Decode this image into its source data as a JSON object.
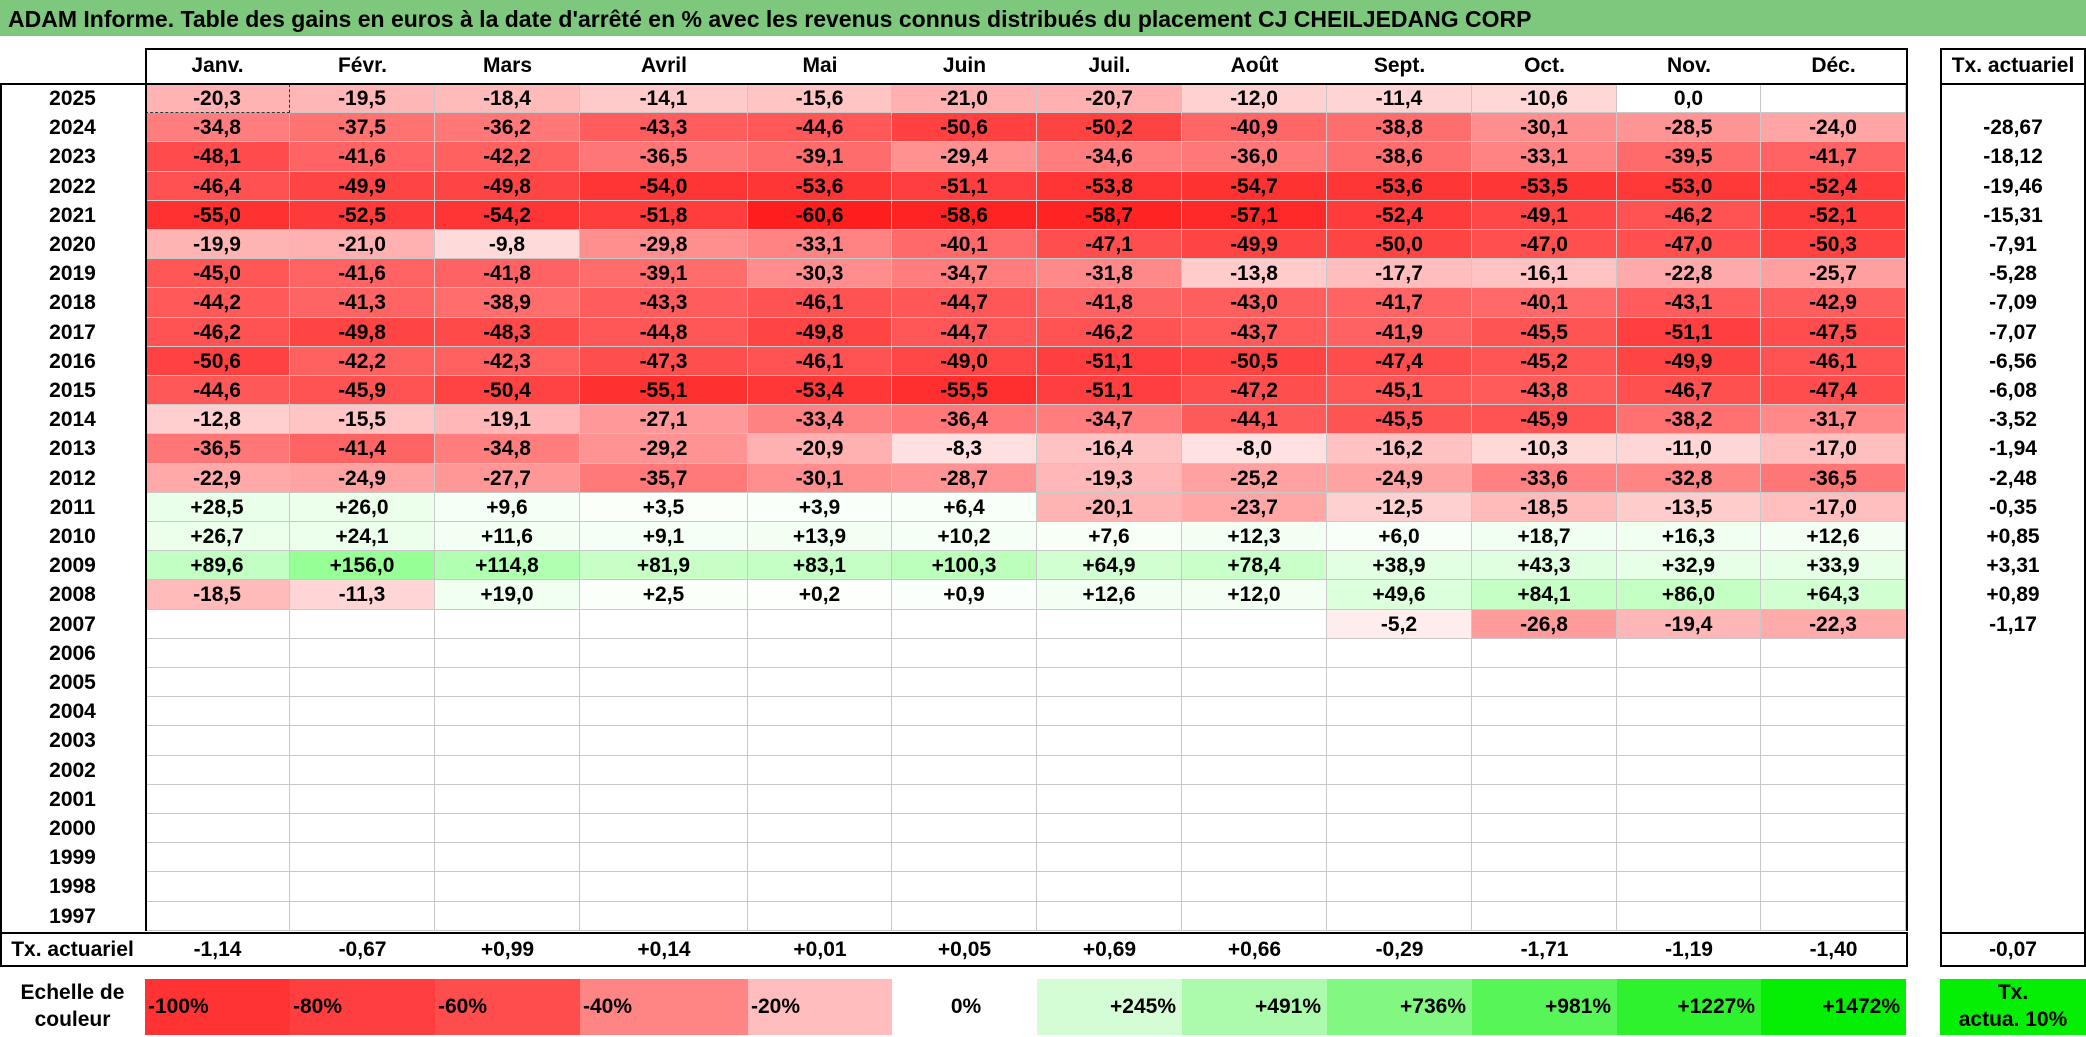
{
  "title": "ADAM Informe. Table des gains en euros à la date d'arrêté en % avec les revenus connus distribués du placement CJ CHEILJEDANG CORP",
  "months": [
    "Janv.",
    "Févr.",
    "Mars",
    "Avril",
    "Mai",
    "Juin",
    "Juil.",
    "Août",
    "Sept.",
    "Oct.",
    "Nov.",
    "Déc."
  ],
  "tx_header": "Tx. actuariel",
  "rows": [
    {
      "year": "2025",
      "v": [
        "-20,3",
        "-19,5",
        "-18,4",
        "-14,1",
        "-15,6",
        "-21,0",
        "-20,7",
        "-12,0",
        "-11,4",
        "-10,6",
        "0,0",
        ""
      ],
      "tx": ""
    },
    {
      "year": "2024",
      "v": [
        "-34,8",
        "-37,5",
        "-36,2",
        "-43,3",
        "-44,6",
        "-50,6",
        "-50,2",
        "-40,9",
        "-38,8",
        "-30,1",
        "-28,5",
        "-24,0"
      ],
      "tx": "-28,67"
    },
    {
      "year": "2023",
      "v": [
        "-48,1",
        "-41,6",
        "-42,2",
        "-36,5",
        "-39,1",
        "-29,4",
        "-34,6",
        "-36,0",
        "-38,6",
        "-33,1",
        "-39,5",
        "-41,7"
      ],
      "tx": "-18,12"
    },
    {
      "year": "2022",
      "v": [
        "-46,4",
        "-49,9",
        "-49,8",
        "-54,0",
        "-53,6",
        "-51,1",
        "-53,8",
        "-54,7",
        "-53,6",
        "-53,5",
        "-53,0",
        "-52,4"
      ],
      "tx": "-19,46"
    },
    {
      "year": "2021",
      "v": [
        "-55,0",
        "-52,5",
        "-54,2",
        "-51,8",
        "-60,6",
        "-58,6",
        "-58,7",
        "-57,1",
        "-52,4",
        "-49,1",
        "-46,2",
        "-52,1"
      ],
      "tx": "-15,31"
    },
    {
      "year": "2020",
      "v": [
        "-19,9",
        "-21,0",
        "-9,8",
        "-29,8",
        "-33,1",
        "-40,1",
        "-47,1",
        "-49,9",
        "-50,0",
        "-47,0",
        "-47,0",
        "-50,3"
      ],
      "tx": "-7,91"
    },
    {
      "year": "2019",
      "v": [
        "-45,0",
        "-41,6",
        "-41,8",
        "-39,1",
        "-30,3",
        "-34,7",
        "-31,8",
        "-13,8",
        "-17,7",
        "-16,1",
        "-22,8",
        "-25,7"
      ],
      "tx": "-5,28"
    },
    {
      "year": "2018",
      "v": [
        "-44,2",
        "-41,3",
        "-38,9",
        "-43,3",
        "-46,1",
        "-44,7",
        "-41,8",
        "-43,0",
        "-41,7",
        "-40,1",
        "-43,1",
        "-42,9"
      ],
      "tx": "-7,09"
    },
    {
      "year": "2017",
      "v": [
        "-46,2",
        "-49,8",
        "-48,3",
        "-44,8",
        "-49,8",
        "-44,7",
        "-46,2",
        "-43,7",
        "-41,9",
        "-45,5",
        "-51,1",
        "-47,5"
      ],
      "tx": "-7,07"
    },
    {
      "year": "2016",
      "v": [
        "-50,6",
        "-42,2",
        "-42,3",
        "-47,3",
        "-46,1",
        "-49,0",
        "-51,1",
        "-50,5",
        "-47,4",
        "-45,2",
        "-49,9",
        "-46,1"
      ],
      "tx": "-6,56"
    },
    {
      "year": "2015",
      "v": [
        "-44,6",
        "-45,9",
        "-50,4",
        "-55,1",
        "-53,4",
        "-55,5",
        "-51,1",
        "-47,2",
        "-45,1",
        "-43,8",
        "-46,7",
        "-47,4"
      ],
      "tx": "-6,08"
    },
    {
      "year": "2014",
      "v": [
        "-12,8",
        "-15,5",
        "-19,1",
        "-27,1",
        "-33,4",
        "-36,4",
        "-34,7",
        "-44,1",
        "-45,5",
        "-45,9",
        "-38,2",
        "-31,7"
      ],
      "tx": "-3,52"
    },
    {
      "year": "2013",
      "v": [
        "-36,5",
        "-41,4",
        "-34,8",
        "-29,2",
        "-20,9",
        "-8,3",
        "-16,4",
        "-8,0",
        "-16,2",
        "-10,3",
        "-11,0",
        "-17,0"
      ],
      "tx": "-1,94"
    },
    {
      "year": "2012",
      "v": [
        "-22,9",
        "-24,9",
        "-27,7",
        "-35,7",
        "-30,1",
        "-28,7",
        "-19,3",
        "-25,2",
        "-24,9",
        "-33,6",
        "-32,8",
        "-36,5"
      ],
      "tx": "-2,48"
    },
    {
      "year": "2011",
      "v": [
        "+28,5",
        "+26,0",
        "+9,6",
        "+3,5",
        "+3,9",
        "+6,4",
        "-20,1",
        "-23,7",
        "-12,5",
        "-18,5",
        "-13,5",
        "-17,0"
      ],
      "tx": "-0,35"
    },
    {
      "year": "2010",
      "v": [
        "+26,7",
        "+24,1",
        "+11,6",
        "+9,1",
        "+13,9",
        "+10,2",
        "+7,6",
        "+12,3",
        "+6,0",
        "+18,7",
        "+16,3",
        "+12,6"
      ],
      "tx": "+0,85"
    },
    {
      "year": "2009",
      "v": [
        "+89,6",
        "+156,0",
        "+114,8",
        "+81,9",
        "+83,1",
        "+100,3",
        "+64,9",
        "+78,4",
        "+38,9",
        "+43,3",
        "+32,9",
        "+33,9"
      ],
      "tx": "+3,31"
    },
    {
      "year": "2008",
      "v": [
        "-18,5",
        "-11,3",
        "+19,0",
        "+2,5",
        "+0,2",
        "+0,9",
        "+12,6",
        "+12,0",
        "+49,6",
        "+84,1",
        "+86,0",
        "+64,3"
      ],
      "tx": "+0,89"
    },
    {
      "year": "2007",
      "v": [
        "",
        "",
        "",
        "",
        "",
        "",
        "",
        "",
        "-5,2",
        "-26,8",
        "-19,4",
        "-22,3"
      ],
      "tx": "-1,17"
    },
    {
      "year": "2006",
      "v": [
        "",
        "",
        "",
        "",
        "",
        "",
        "",
        "",
        "",
        "",
        "",
        ""
      ],
      "tx": ""
    },
    {
      "year": "2005",
      "v": [
        "",
        "",
        "",
        "",
        "",
        "",
        "",
        "",
        "",
        "",
        "",
        ""
      ],
      "tx": ""
    },
    {
      "year": "2004",
      "v": [
        "",
        "",
        "",
        "",
        "",
        "",
        "",
        "",
        "",
        "",
        "",
        ""
      ],
      "tx": ""
    },
    {
      "year": "2003",
      "v": [
        "",
        "",
        "",
        "",
        "",
        "",
        "",
        "",
        "",
        "",
        "",
        ""
      ],
      "tx": ""
    },
    {
      "year": "2002",
      "v": [
        "",
        "",
        "",
        "",
        "",
        "",
        "",
        "",
        "",
        "",
        "",
        ""
      ],
      "tx": ""
    },
    {
      "year": "2001",
      "v": [
        "",
        "",
        "",
        "",
        "",
        "",
        "",
        "",
        "",
        "",
        "",
        ""
      ],
      "tx": ""
    },
    {
      "year": "2000",
      "v": [
        "",
        "",
        "",
        "",
        "",
        "",
        "",
        "",
        "",
        "",
        "",
        ""
      ],
      "tx": ""
    },
    {
      "year": "1999",
      "v": [
        "",
        "",
        "",
        "",
        "",
        "",
        "",
        "",
        "",
        "",
        "",
        ""
      ],
      "tx": ""
    },
    {
      "year": "1998",
      "v": [
        "",
        "",
        "",
        "",
        "",
        "",
        "",
        "",
        "",
        "",
        "",
        ""
      ],
      "tx": ""
    },
    {
      "year": "1997",
      "v": [
        "",
        "",
        "",
        "",
        "",
        "",
        "",
        "",
        "",
        "",
        "",
        ""
      ],
      "tx": ""
    }
  ],
  "footer": {
    "label": "Tx. actuariel",
    "values": [
      "-1,14",
      "-0,67",
      "+0,99",
      "+0,14",
      "+0,01",
      "+0,05",
      "+0,69",
      "+0,66",
      "-0,29",
      "-1,71",
      "-1,19",
      "-1,40"
    ],
    "total": "-0,07"
  },
  "legend": {
    "label_line1": "Echelle de",
    "label_line2": "couleur",
    "items": [
      {
        "text": "-100%",
        "color": "#ff3333"
      },
      {
        "text": "-80%",
        "color": "#ff3f3f"
      },
      {
        "text": "-60%",
        "color": "#ff4d4d"
      },
      {
        "text": "-40%",
        "color": "#ff8585"
      },
      {
        "text": "-20%",
        "color": "#ffbdbd"
      },
      {
        "text": "0%",
        "color": "#ffffff"
      },
      {
        "text": "+245%",
        "color": "#d5fdd5"
      },
      {
        "text": "+491%",
        "color": "#acfaac"
      },
      {
        "text": "+736%",
        "color": "#82f882"
      },
      {
        "text": "+981%",
        "color": "#58f558"
      },
      {
        "text": "+1227%",
        "color": "#2ef22e"
      },
      {
        "text": "+1472%",
        "color": "#05ef05"
      }
    ],
    "tx_line1": "Tx.",
    "tx_line2": "actua. 10%",
    "tx_color": "#05ef05"
  }
}
